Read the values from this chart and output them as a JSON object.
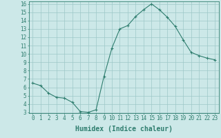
{
  "xlabel": "Humidex (Indice chaleur)",
  "x": [
    0,
    1,
    2,
    3,
    4,
    5,
    6,
    7,
    8,
    9,
    10,
    11,
    12,
    13,
    14,
    15,
    16,
    17,
    18,
    19,
    20,
    21,
    22,
    23
  ],
  "y": [
    6.5,
    6.2,
    5.3,
    4.8,
    4.7,
    4.2,
    3.1,
    3.0,
    3.3,
    7.3,
    10.7,
    13.0,
    13.4,
    14.5,
    15.3,
    16.0,
    15.3,
    14.4,
    13.3,
    11.7,
    10.2,
    9.8,
    9.5,
    9.3
  ],
  "ylim": [
    3,
    16
  ],
  "xlim": [
    -0.5,
    23.5
  ],
  "yticks": [
    3,
    4,
    5,
    6,
    7,
    8,
    9,
    10,
    11,
    12,
    13,
    14,
    15,
    16
  ],
  "xticks": [
    0,
    1,
    2,
    3,
    4,
    5,
    6,
    7,
    8,
    9,
    10,
    11,
    12,
    13,
    14,
    15,
    16,
    17,
    18,
    19,
    20,
    21,
    22,
    23
  ],
  "line_color": "#2e7d6e",
  "marker": "+",
  "bg_color": "#cce8e8",
  "grid_color": "#9dc8c8",
  "tick_label_color": "#2e7d6e",
  "xlabel_color": "#2e7d6e",
  "xlabel_fontsize": 7,
  "tick_fontsize": 5.5
}
